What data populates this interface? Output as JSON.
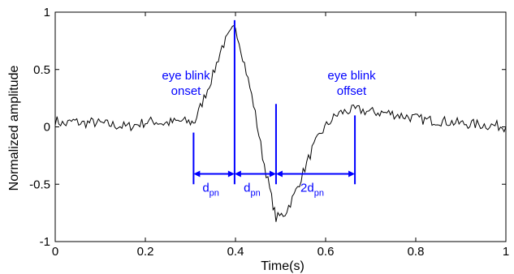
{
  "chart_data": {
    "type": "line",
    "title": "",
    "xlabel": "Time(s)",
    "ylabel": "Normalized amplitude",
    "xlim": [
      0,
      1
    ],
    "ylim": [
      -1,
      1
    ],
    "xticks": [
      0,
      0.2,
      0.4,
      0.6,
      0.8,
      1
    ],
    "xtick_labels": [
      "0",
      "0.2",
      "0.4",
      "0.6",
      "0.8",
      "1"
    ],
    "yticks": [
      -1,
      -0.5,
      0,
      0.5,
      1
    ],
    "ytick_labels": [
      "-1",
      "-0.5",
      "0",
      "0.5",
      "1"
    ],
    "grid": false,
    "line_color": "#000000",
    "annotation_color": "#0000ff",
    "series": [
      {
        "x": [
          0.0,
          0.02,
          0.04,
          0.06,
          0.08,
          0.1,
          0.12,
          0.14,
          0.16,
          0.18,
          0.2,
          0.22,
          0.24,
          0.26,
          0.28,
          0.3,
          0.31,
          0.33,
          0.35,
          0.37,
          0.39,
          0.4,
          0.42,
          0.44,
          0.46,
          0.48,
          0.49,
          0.51,
          0.53,
          0.55,
          0.57,
          0.59,
          0.61,
          0.63,
          0.65,
          0.67,
          0.7,
          0.74,
          0.78,
          0.82,
          0.86,
          0.9,
          0.94,
          0.98,
          1.0
        ],
        "y": [
          0.06,
          0.02,
          0.05,
          0.03,
          0.04,
          0.03,
          0.02,
          0.01,
          0.0,
          0.02,
          0.04,
          0.05,
          0.03,
          0.04,
          0.05,
          0.04,
          0.05,
          0.25,
          0.45,
          0.7,
          0.82,
          0.88,
          0.55,
          0.2,
          -0.25,
          -0.62,
          -0.8,
          -0.75,
          -0.6,
          -0.4,
          -0.2,
          -0.05,
          0.05,
          0.12,
          0.14,
          0.15,
          0.13,
          0.12,
          0.09,
          0.06,
          0.05,
          0.03,
          0.02,
          0.01,
          0.0
        ]
      }
    ],
    "annotations": {
      "onset_label": [
        "eye blink",
        "onset"
      ],
      "offset_label": [
        "eye blink",
        "offset"
      ],
      "markers_x": [
        0.307,
        0.398,
        0.49,
        0.665
      ],
      "markers_y_top": [
        -0.05,
        0.93,
        0.2,
        0.1
      ],
      "arrow_y": -0.41,
      "intervals": [
        {
          "from": 0.307,
          "to": 0.398,
          "main": "d",
          "sub": "pn"
        },
        {
          "from": 0.398,
          "to": 0.49,
          "main": "d",
          "sub": "pn"
        },
        {
          "from": 0.49,
          "to": 0.665,
          "main": "2d",
          "sub": "pn"
        }
      ]
    }
  }
}
